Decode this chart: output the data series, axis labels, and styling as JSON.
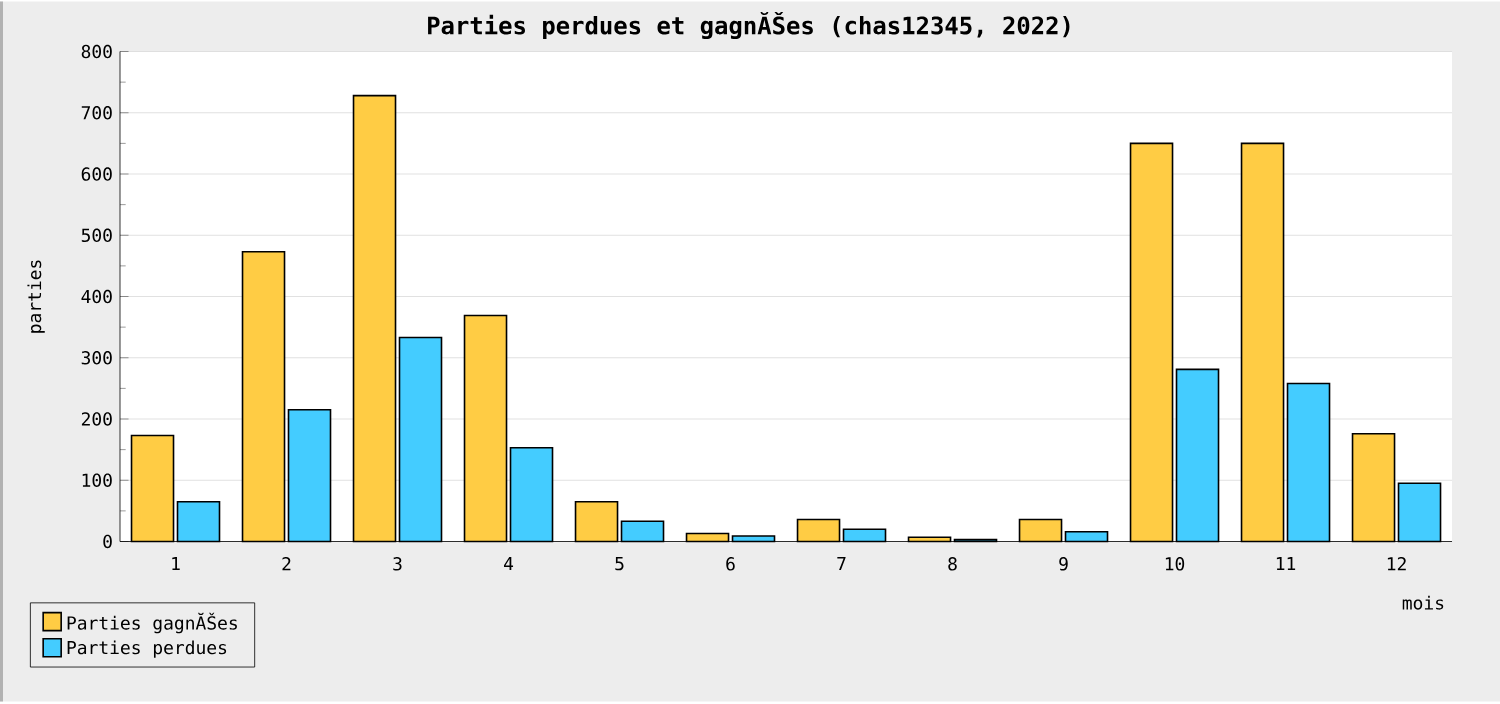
{
  "chart_data": {
    "type": "bar",
    "title": "Parties perdues et gagnĂŠes (chas12345, 2022)",
    "xlabel": "mois",
    "ylabel": "parties",
    "categories": [
      "1",
      "2",
      "3",
      "4",
      "5",
      "6",
      "7",
      "8",
      "9",
      "10",
      "11",
      "12"
    ],
    "series": [
      {
        "name": "Parties gagnĂŠes",
        "color": "#ffcc44",
        "values": [
          173,
          473,
          728,
          369,
          65,
          13,
          36,
          7,
          36,
          650,
          650,
          176
        ]
      },
      {
        "name": "Parties perdues",
        "color": "#44ccff",
        "values": [
          65,
          215,
          333,
          153,
          33,
          9,
          20,
          3,
          16,
          281,
          258,
          95
        ]
      }
    ],
    "ylim": [
      0,
      800
    ],
    "yticks": [
      0,
      100,
      200,
      300,
      400,
      500,
      600,
      700,
      800
    ],
    "grid": "y",
    "legend": "bottom left"
  }
}
